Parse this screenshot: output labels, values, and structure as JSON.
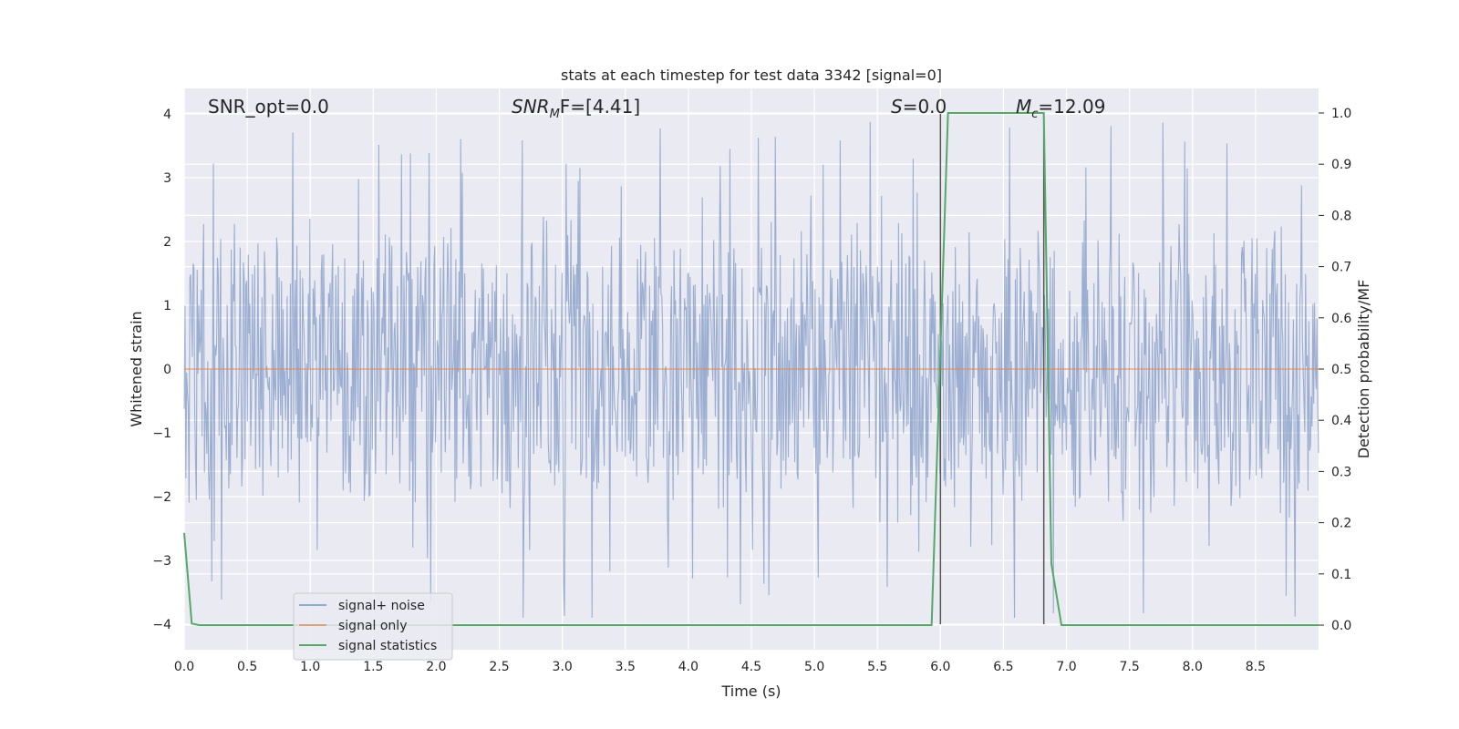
{
  "chart_data": {
    "type": "line",
    "title": "stats at each timestep for test data 3342 [signal=0]",
    "xlabel": "Time (s)",
    "ylabel": "Whitened strain",
    "ylabel_right": "Detection probability/MF",
    "xlim": [
      0.0,
      9.0
    ],
    "ylim": [
      -4.4,
      4.4
    ],
    "ylim_right": [
      -0.048,
      1.048
    ],
    "x_ticks": [
      "0.0",
      "0.5",
      "1.0",
      "1.5",
      "2.0",
      "2.5",
      "3.0",
      "3.5",
      "4.0",
      "4.5",
      "5.0",
      "5.5",
      "6.0",
      "6.5",
      "7.0",
      "7.5",
      "8.0",
      "8.5"
    ],
    "y_ticks": [
      "4",
      "3",
      "2",
      "1",
      "0",
      "−1",
      "−2",
      "−3",
      "−4"
    ],
    "y_ticks_right": [
      "1.0",
      "0.9",
      "0.8",
      "0.7",
      "0.6",
      "0.5",
      "0.4",
      "0.3",
      "0.2",
      "0.1",
      "0.0"
    ],
    "grid": true,
    "legend_position": "bottom-left",
    "colors": {
      "background": "#eaeaf2",
      "grid": "#ffffff",
      "noise": "#4c72b0",
      "signal": "#dd8452",
      "statistics": "#55a868",
      "vline": "#555555"
    },
    "annotations": {
      "snr_opt": "SNR_opt=0.0",
      "snr_mf_prefix": "SNR",
      "snr_mf_sub": "M",
      "snr_mf_suffix": "F=[4.41]",
      "s_prefix": "S",
      "s_suffix": "=0.0",
      "mc_prefix": "M",
      "mc_sub": "c",
      "mc_suffix": "=12.09"
    },
    "series": [
      {
        "name": "signal+ noise",
        "kind": "noise",
        "description": "whitened strain noise, roughly ±2.5 envelope with spikes up to ±4",
        "peak_max": 4.0,
        "peak_min": -3.9,
        "typical_amplitude": 2.5
      },
      {
        "name": "signal only",
        "kind": "constant",
        "value": 0.0
      },
      {
        "name": "signal statistics",
        "kind": "probability",
        "x": [
          0.0,
          0.06,
          0.12,
          5.93,
          6.06,
          6.82,
          6.88,
          6.96,
          9.0
        ],
        "y": [
          0.18,
          0.003,
          0.0,
          0.0,
          1.0,
          1.0,
          0.12,
          0.0,
          0.0
        ]
      }
    ],
    "vlines": [
      6.0,
      6.82
    ]
  }
}
